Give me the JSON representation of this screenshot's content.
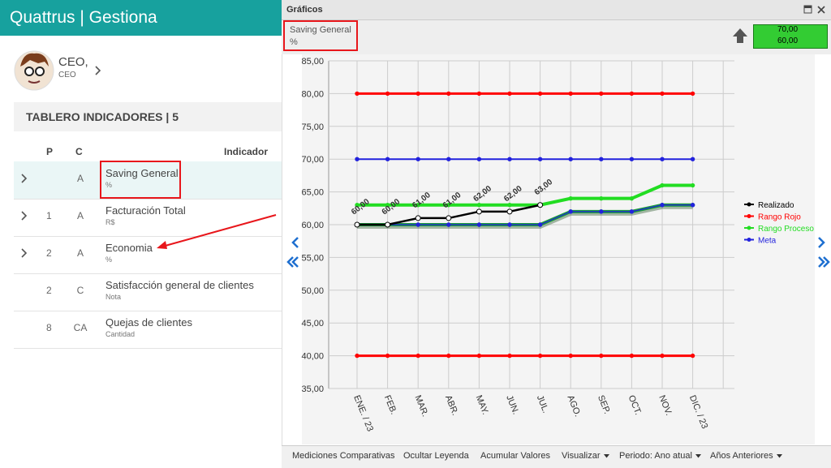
{
  "app": {
    "title": "Quattrus | Gestiona"
  },
  "user": {
    "name": "CEO,",
    "role": "CEO"
  },
  "board": {
    "title": "TABLERO INDICADORES | 5",
    "columns": [
      "P",
      "C",
      "Indicador"
    ],
    "rows": [
      {
        "c": "A",
        "name": "Saving General",
        "unit": "%"
      },
      {
        "p": "1",
        "c": "A",
        "name": "Facturación Total",
        "unit": "R$"
      },
      {
        "p": "2",
        "c": "A",
        "name": "Economia",
        "unit": "%"
      },
      {
        "p": "2",
        "c": "C",
        "name": "Satisfacción general de clientes",
        "unit": "Nota"
      },
      {
        "p": "8",
        "c": "CA",
        "name": "Quejas de clientes",
        "unit": "Cantidad"
      }
    ]
  },
  "panel": {
    "title": "Gráficos",
    "badge": [
      "70,00",
      "60,00"
    ],
    "toolbar": [
      "Mediciones Comparativas",
      "Ocultar Leyenda",
      "Acumular Valores",
      "Visualizar",
      "Periodo: Ano atual",
      "Años Anteriores"
    ]
  },
  "chart_data": {
    "type": "line",
    "title": "Saving General",
    "subtitle": "%",
    "categories": [
      "ENE. / 23",
      "FEB.",
      "MAR.",
      "ABR.",
      "MAY.",
      "JUN.",
      "JUL.",
      "AGO.",
      "SEP.",
      "OCT.",
      "NOV.",
      "DIC. / 23"
    ],
    "ylim": [
      35,
      85
    ],
    "yticks": [
      {
        "value": 35,
        "label": "35,00"
      },
      {
        "value": 40,
        "label": "40,00"
      },
      {
        "value": 45,
        "label": "45,00"
      },
      {
        "value": 50,
        "label": "50,00"
      },
      {
        "value": 55,
        "label": "55,00"
      },
      {
        "value": 60,
        "label": "60,00"
      },
      {
        "value": 65,
        "label": "65,00"
      },
      {
        "value": 70,
        "label": "70,00"
      },
      {
        "value": 75,
        "label": "75,00"
      },
      {
        "value": 80,
        "label": "80,00"
      },
      {
        "value": 85,
        "label": "85,00"
      }
    ],
    "grid": true,
    "series": [
      {
        "name": "Realizado",
        "color": "#000000",
        "values": [
          60,
          60,
          61,
          61,
          62,
          62,
          63,
          null,
          null,
          null,
          null,
          null
        ],
        "value_labels": [
          "60,00",
          "60,00",
          "61,00",
          "61,00",
          "62,00",
          "62,00",
          "63,00",
          null,
          null,
          null,
          null,
          null
        ]
      },
      {
        "name": "Rango Rojo",
        "color": "#ff0000",
        "values": [
          80,
          80,
          80,
          80,
          80,
          80,
          80,
          80,
          80,
          80,
          80,
          80
        ],
        "lower": [
          40,
          40,
          40,
          40,
          40,
          40,
          40,
          40,
          40,
          40,
          40,
          40
        ]
      },
      {
        "name": "Rango Proceso",
        "color": "#22dd22",
        "values": [
          63,
          63,
          63,
          63,
          63,
          63,
          63,
          64,
          64,
          64,
          66,
          66
        ],
        "lower": [
          60,
          60,
          60,
          60,
          60,
          60,
          60,
          62,
          62,
          62,
          63,
          63
        ]
      },
      {
        "name": "Meta",
        "color": "#2222dd",
        "values": [
          70,
          70,
          70,
          70,
          70,
          70,
          70,
          70,
          70,
          70,
          70,
          70
        ],
        "lower": [
          60,
          60,
          60,
          60,
          60,
          60,
          60,
          62,
          62,
          62,
          63,
          63
        ]
      }
    ]
  }
}
